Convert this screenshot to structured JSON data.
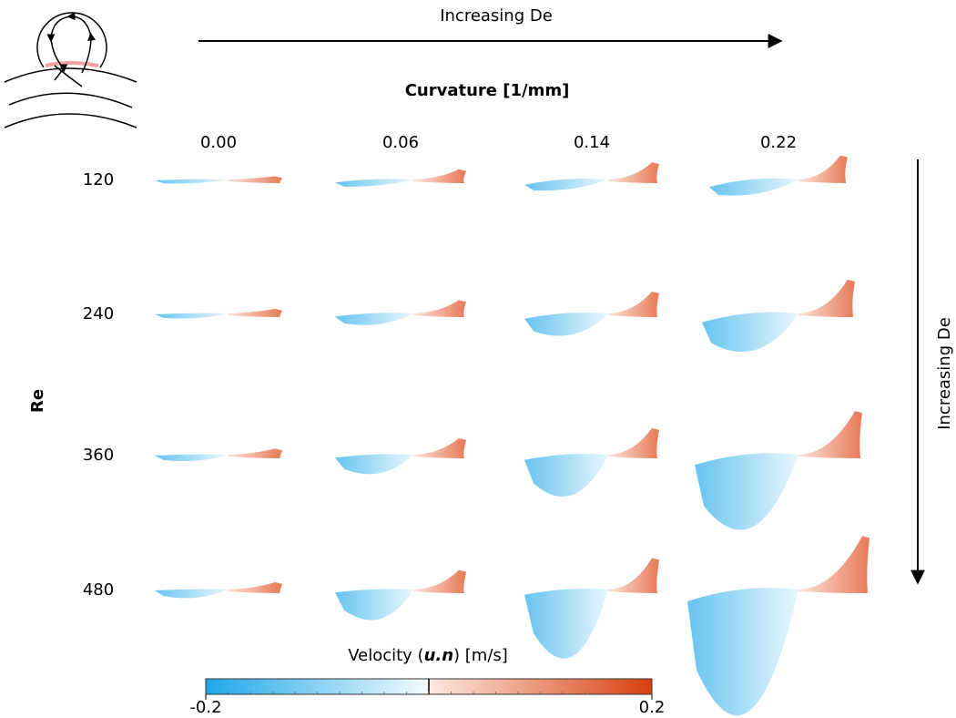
{
  "top_arrow": {
    "label": "Increasing De"
  },
  "column_header": {
    "title": "Curvature [1/mm]",
    "labels": [
      "0.00",
      "0.06",
      "0.14",
      "0.22"
    ]
  },
  "row_header": {
    "title": "Re",
    "labels": [
      "120",
      "240",
      "360",
      "480"
    ]
  },
  "right_arrow": {
    "label": "Increasing De"
  },
  "colorbar": {
    "title_parts": [
      "Velocity (",
      "u.n",
      ") [m/s]"
    ],
    "min": -0.2,
    "max": 0.2
  }
}
